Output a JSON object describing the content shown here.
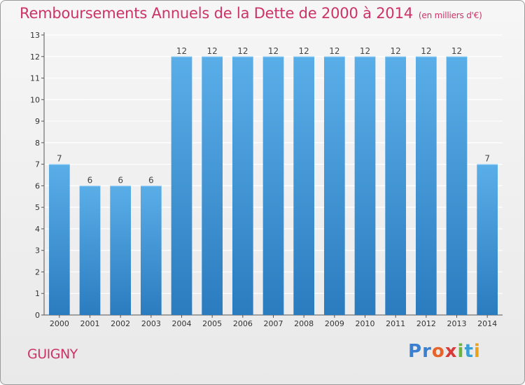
{
  "title": "Remboursements Annuels de la Dette de 2000 à 2014",
  "subtitle": "(en milliers d'€)",
  "commune": "GUIGNY",
  "logo": {
    "letters": [
      "P",
      "r",
      "o",
      "x",
      "i",
      "t",
      "i"
    ],
    "colors": [
      "#3a7fd0",
      "#3a7fd0",
      "#e8632a",
      "#d93a3a",
      "#6cb33f",
      "#3a9fd6",
      "#e8a21c"
    ]
  },
  "colors": {
    "accent": "#cc3366",
    "bar_top": "#5aaee8",
    "bar_bottom": "#2b7cbf"
  },
  "chart_data": {
    "type": "bar",
    "categories": [
      "2000",
      "2001",
      "2002",
      "2003",
      "2004",
      "2005",
      "2006",
      "2007",
      "2008",
      "2009",
      "2010",
      "2011",
      "2012",
      "2013",
      "2014"
    ],
    "values": [
      7,
      6,
      6,
      6,
      12,
      12,
      12,
      12,
      12,
      12,
      12,
      12,
      12,
      12,
      7
    ],
    "title": "Remboursements Annuels de la Dette de 2000 à 2014",
    "xlabel": "",
    "ylabel": "",
    "ylim": [
      0,
      13
    ],
    "yticks": [
      0,
      1,
      2,
      3,
      4,
      5,
      6,
      7,
      8,
      9,
      10,
      11,
      12,
      13
    ],
    "grid": true,
    "data_labels": true
  }
}
